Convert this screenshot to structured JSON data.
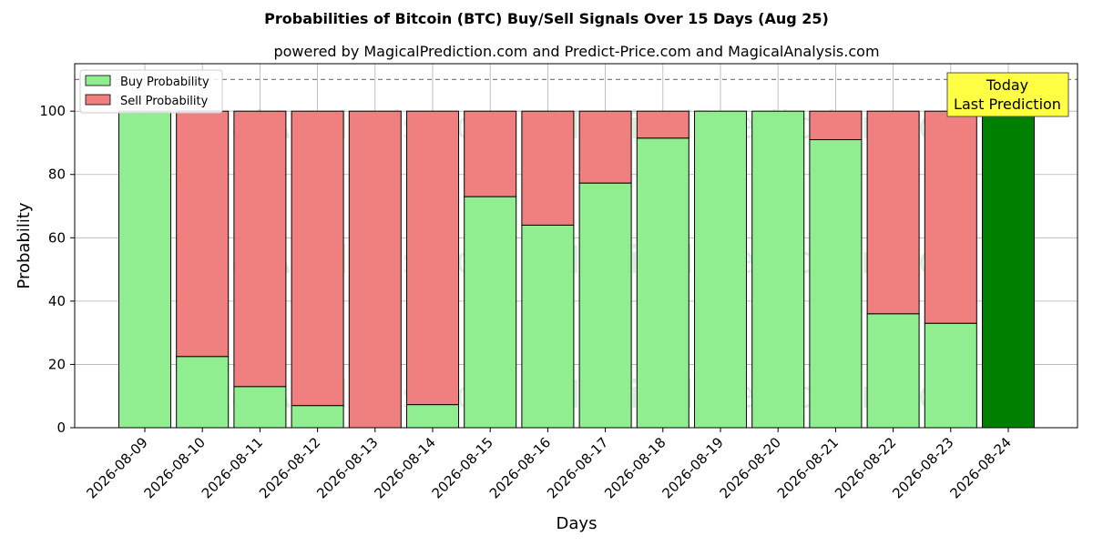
{
  "chart_data": {
    "type": "bar",
    "stacked": true,
    "title": "Probabilities of Bitcoin (BTC) Buy/Sell Signals Over 15 Days (Aug 25)",
    "subtitle": "powered by MagicalPrediction.com and Predict-Price.com and MagicalAnalysis.com",
    "xlabel": "Days",
    "ylabel": "Probability",
    "ylim": [
      0,
      115
    ],
    "yticks": [
      0,
      20,
      40,
      60,
      80,
      100
    ],
    "grid": true,
    "legend_position": "top-left",
    "reference_line": 110,
    "categories": [
      "2026-08-09",
      "2026-08-10",
      "2026-08-11",
      "2026-08-12",
      "2026-08-13",
      "2026-08-14",
      "2026-08-15",
      "2026-08-16",
      "2026-08-17",
      "2026-08-18",
      "2026-08-19",
      "2026-08-20",
      "2026-08-21",
      "2026-08-22",
      "2026-08-23",
      "2026-08-24"
    ],
    "series": [
      {
        "name": "Buy Probability",
        "color": "#90ee90",
        "values": [
          100,
          22.5,
          13,
          7,
          0,
          7.3,
          73,
          64,
          77.3,
          91.5,
          100,
          100,
          91,
          36,
          33,
          100
        ]
      },
      {
        "name": "Sell Probability",
        "color": "#f08080",
        "values": [
          0,
          77.5,
          87,
          93,
          100,
          92.7,
          27,
          36,
          22.7,
          8.5,
          0,
          0,
          9,
          64,
          67,
          0
        ]
      }
    ],
    "highlight": {
      "category": "2026-08-24",
      "color": "#008000"
    },
    "annotation": {
      "line1": "Today",
      "line2": "Last Prediction",
      "background": "#ffff44"
    },
    "watermarks": [
      "MagicalAnalysis.com",
      "MagicalPrediction.com"
    ]
  }
}
